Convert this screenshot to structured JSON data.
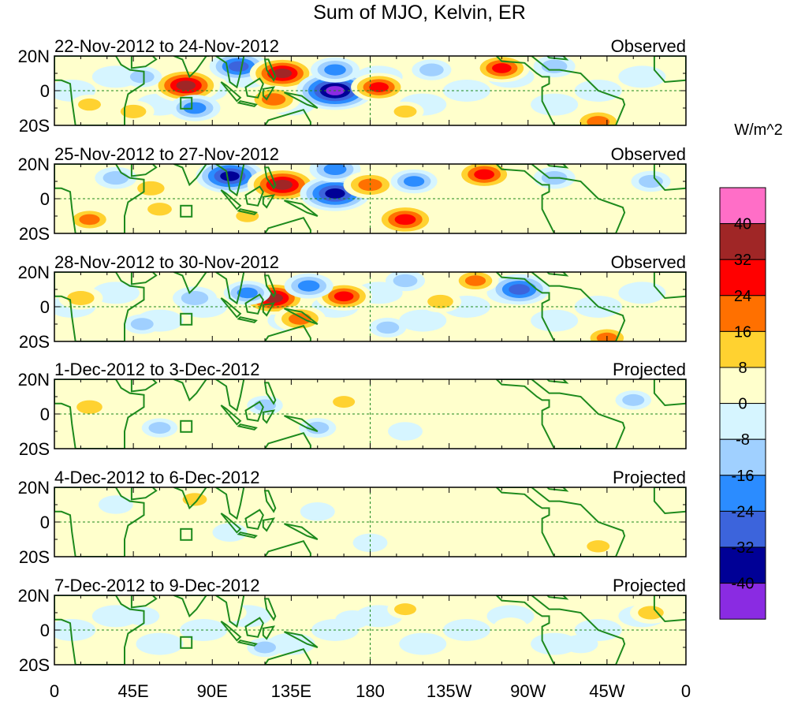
{
  "chart_data": {
    "type": "heatmap",
    "title": "Sum of MJO, Kelvin, ER",
    "units": "W/m^2",
    "y_tick_labels": [
      "20N",
      "0",
      "20S"
    ],
    "x_tick_labels": [
      "0",
      "45E",
      "90E",
      "135E",
      "180",
      "135W",
      "90W",
      "45W",
      "0"
    ],
    "lon_range": [
      0,
      360
    ],
    "lat_range": [
      -20,
      20
    ],
    "colorbar": {
      "labels": [
        "40",
        "32",
        "24",
        "16",
        "8",
        "0",
        "-8",
        "-16",
        "-24",
        "-32",
        "-40"
      ],
      "colors": [
        "#ff6ec7",
        "#a02626",
        "#ff0000",
        "#ff7000",
        "#ffd230",
        "#ffffcc",
        "#d6f5ff",
        "#a0d0ff",
        "#2b8cff",
        "#3c64dc",
        "#000096",
        "#8a2be2"
      ]
    },
    "panels": [
      {
        "period": "22-Nov-2012 to 24-Nov-2012",
        "status": "Observed",
        "anomalies": [
          {
            "lon": 75,
            "lat": 3,
            "value": 36
          },
          {
            "lon": 80,
            "lat": -10,
            "value": -22
          },
          {
            "lon": 50,
            "lat": 8,
            "value": -12
          },
          {
            "lon": 45,
            "lat": -12,
            "value": 14
          },
          {
            "lon": 105,
            "lat": 14,
            "value": -28
          },
          {
            "lon": 130,
            "lat": 10,
            "value": 34
          },
          {
            "lon": 125,
            "lat": -5,
            "value": 24
          },
          {
            "lon": 160,
            "lat": 0,
            "value": -44
          },
          {
            "lon": 160,
            "lat": 12,
            "value": -20
          },
          {
            "lon": 185,
            "lat": 2,
            "value": 26
          },
          {
            "lon": 200,
            "lat": -12,
            "value": 10
          },
          {
            "lon": 255,
            "lat": 13,
            "value": 26
          },
          {
            "lon": 215,
            "lat": 12,
            "value": -12
          },
          {
            "lon": 285,
            "lat": 14,
            "value": -14
          },
          {
            "lon": 310,
            "lat": -18,
            "value": 22
          },
          {
            "lon": 20,
            "lat": -8,
            "value": 10
          }
        ]
      },
      {
        "period": "25-Nov-2012 to 27-Nov-2012",
        "status": "Observed",
        "anomalies": [
          {
            "lon": 100,
            "lat": 13,
            "value": -36
          },
          {
            "lon": 130,
            "lat": 8,
            "value": 38
          },
          {
            "lon": 160,
            "lat": 3,
            "value": -38
          },
          {
            "lon": 160,
            "lat": 17,
            "value": -22
          },
          {
            "lon": 180,
            "lat": 8,
            "value": 24
          },
          {
            "lon": 55,
            "lat": 6,
            "value": 16
          },
          {
            "lon": 35,
            "lat": 12,
            "value": -14
          },
          {
            "lon": 20,
            "lat": -12,
            "value": 18
          },
          {
            "lon": 60,
            "lat": -6,
            "value": 12
          },
          {
            "lon": 200,
            "lat": -12,
            "value": 30
          },
          {
            "lon": 245,
            "lat": 14,
            "value": 28
          },
          {
            "lon": 205,
            "lat": 10,
            "value": -18
          },
          {
            "lon": 285,
            "lat": 12,
            "value": -14
          },
          {
            "lon": 110,
            "lat": -10,
            "value": 10
          },
          {
            "lon": 340,
            "lat": 10,
            "value": -12
          }
        ]
      },
      {
        "period": "28-Nov-2012 to 30-Nov-2012",
        "status": "Observed",
        "anomalies": [
          {
            "lon": 125,
            "lat": 5,
            "value": 34
          },
          {
            "lon": 140,
            "lat": -7,
            "value": 22
          },
          {
            "lon": 165,
            "lat": 6,
            "value": 26
          },
          {
            "lon": 145,
            "lat": 12,
            "value": -20
          },
          {
            "lon": 110,
            "lat": 8,
            "value": -18
          },
          {
            "lon": 80,
            "lat": 5,
            "value": -16
          },
          {
            "lon": 15,
            "lat": 5,
            "value": 16
          },
          {
            "lon": 265,
            "lat": 10,
            "value": -30
          },
          {
            "lon": 240,
            "lat": 15,
            "value": 18
          },
          {
            "lon": 220,
            "lat": 3,
            "value": 14
          },
          {
            "lon": 50,
            "lat": -10,
            "value": -10
          },
          {
            "lon": 315,
            "lat": -18,
            "value": 18
          },
          {
            "lon": 190,
            "lat": -12,
            "value": -10
          },
          {
            "lon": 200,
            "lat": 15,
            "value": -12
          }
        ]
      },
      {
        "period": "1-Dec-2012 to 3-Dec-2012",
        "status": "Projected",
        "anomalies": [
          {
            "lon": 20,
            "lat": 4,
            "value": 14
          },
          {
            "lon": 100,
            "lat": 14,
            "value": 8
          },
          {
            "lon": 165,
            "lat": 7,
            "value": 9
          },
          {
            "lon": 150,
            "lat": -8,
            "value": -10
          },
          {
            "lon": 120,
            "lat": 5,
            "value": -9
          },
          {
            "lon": 60,
            "lat": -8,
            "value": -9
          },
          {
            "lon": 200,
            "lat": -10,
            "value": -8
          },
          {
            "lon": 235,
            "lat": 10,
            "value": 8
          },
          {
            "lon": 285,
            "lat": -15,
            "value": 8
          },
          {
            "lon": 330,
            "lat": 8,
            "value": -9
          },
          {
            "lon": 95,
            "lat": -5,
            "value": 8
          }
        ]
      },
      {
        "period": "4-Dec-2012 to 6-Dec-2012",
        "status": "Projected",
        "anomalies": [
          {
            "lon": 80,
            "lat": 13,
            "value": 12
          },
          {
            "lon": 35,
            "lat": 10,
            "value": -8
          },
          {
            "lon": 100,
            "lat": -6,
            "value": -8
          },
          {
            "lon": 150,
            "lat": 6,
            "value": -8
          },
          {
            "lon": 215,
            "lat": 10,
            "value": 8
          },
          {
            "lon": 255,
            "lat": -5,
            "value": 8
          },
          {
            "lon": 310,
            "lat": -14,
            "value": 10
          },
          {
            "lon": 180,
            "lat": -12,
            "value": -8
          }
        ]
      },
      {
        "period": "7-Dec-2012 to 9-Dec-2012",
        "status": "Projected",
        "anomalies": [
          {
            "lon": 340,
            "lat": 10,
            "value": 14
          },
          {
            "lon": 120,
            "lat": -10,
            "value": -9
          },
          {
            "lon": 100,
            "lat": 10,
            "value": 7
          },
          {
            "lon": 200,
            "lat": 12,
            "value": 9
          },
          {
            "lon": 50,
            "lat": 8,
            "value": -8
          },
          {
            "lon": 170,
            "lat": 6,
            "value": -8
          },
          {
            "lon": 260,
            "lat": 2,
            "value": 7
          },
          {
            "lon": 300,
            "lat": -8,
            "value": -8
          }
        ]
      }
    ]
  }
}
